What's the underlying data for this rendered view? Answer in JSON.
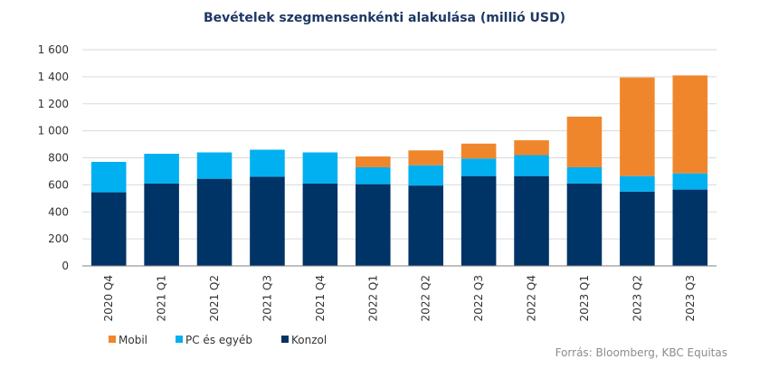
{
  "chart_data": {
    "type": "bar",
    "stacked": true,
    "title": "Bevételek szegmensenkénti alakulása (millió USD)",
    "categories": [
      "2020 Q4",
      "2021 Q1",
      "2021 Q2",
      "2021 Q3",
      "2021 Q4",
      "2022 Q1",
      "2022 Q2",
      "2022 Q3",
      "2022 Q4",
      "2023 Q1",
      "2023 Q2",
      "2023 Q3"
    ],
    "series": [
      {
        "name": "Konzol",
        "color": "#003366",
        "values": [
          545,
          610,
          645,
          660,
          610,
          605,
          595,
          665,
          665,
          610,
          550,
          565
        ]
      },
      {
        "name": "PC és egyéb",
        "color": "#00b0f0",
        "values": [
          225,
          220,
          195,
          200,
          230,
          125,
          150,
          130,
          155,
          120,
          115,
          120
        ]
      },
      {
        "name": "Mobil",
        "color": "#f0862b",
        "values": [
          0,
          0,
          0,
          0,
          0,
          80,
          110,
          110,
          110,
          375,
          730,
          725
        ]
      }
    ],
    "ylim": [
      0,
      1600
    ],
    "yticks": [
      0,
      200,
      400,
      600,
      800,
      1000,
      1200,
      1400,
      1600
    ],
    "ytick_labels": [
      "0",
      "200",
      "400",
      "600",
      "800",
      "1 000",
      "1 200",
      "1 400",
      "1 600"
    ],
    "grid": true,
    "legend": {
      "placement": "bottom-left",
      "items": [
        {
          "label": "Mobil",
          "color": "#f0862b"
        },
        {
          "label": "PC és egyéb",
          "color": "#00b0f0"
        },
        {
          "label": "Konzol",
          "color": "#003366"
        }
      ]
    },
    "source": "Forrás: Bloomberg, KBC Equitas"
  }
}
